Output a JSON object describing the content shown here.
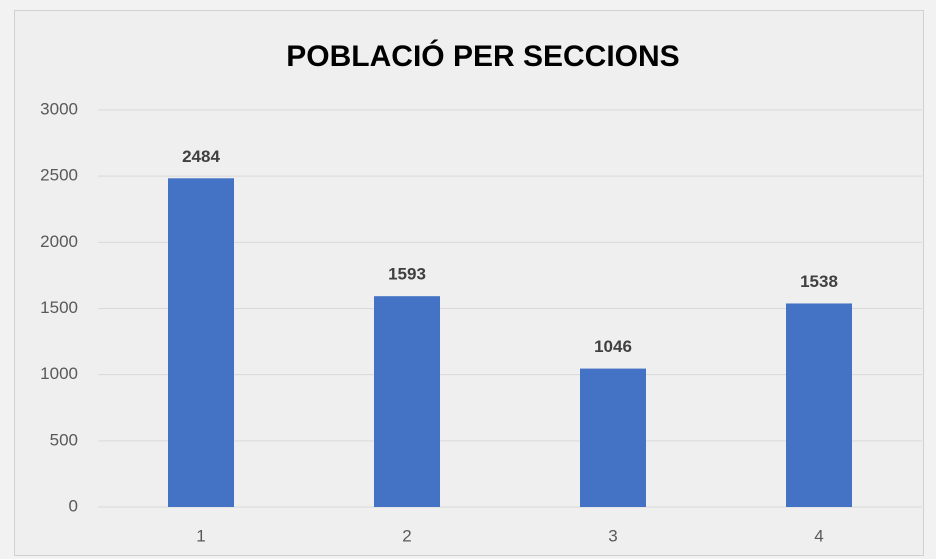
{
  "chart_data": {
    "type": "bar",
    "title": "POBLACIÓ PER SECCIONS",
    "categories": [
      "1",
      "2",
      "3",
      "4"
    ],
    "values": [
      2484,
      1593,
      1046,
      1538
    ],
    "color": "#4472c4",
    "ylim": [
      0,
      3000
    ],
    "yticks": [
      0,
      500,
      1000,
      1500,
      2000,
      2500,
      3000
    ],
    "grid": true
  }
}
